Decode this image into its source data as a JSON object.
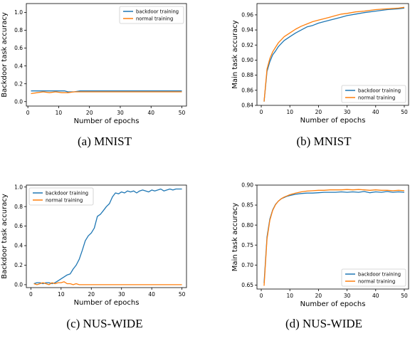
{
  "chart_data": [
    {
      "type": "line",
      "caption": "(a) MNIST",
      "xlabel": "Number of epochs",
      "ylabel": "Backdoor task accuracy",
      "xlim": [
        -0.5,
        51.5
      ],
      "ylim": [
        -0.05,
        1.1
      ],
      "xticks": [
        0,
        10,
        20,
        30,
        40,
        50
      ],
      "yticks": [
        0.0,
        0.2,
        0.4,
        0.6,
        0.8,
        1.0
      ],
      "ytick_labels": [
        "0.0",
        "0.2",
        "0.4",
        "0.6",
        "0.8",
        "1.0"
      ],
      "legend": "top-right",
      "grid": false,
      "series": [
        {
          "name": "backdoor training",
          "color": "#1f77b4",
          "x": [
            1,
            3,
            5,
            7,
            9,
            11,
            12,
            13,
            15,
            17,
            20,
            25,
            30,
            35,
            40,
            45,
            50
          ],
          "values": [
            0.12,
            0.12,
            0.12,
            0.12,
            0.12,
            0.12,
            0.12,
            0.11,
            0.11,
            0.12,
            0.12,
            0.12,
            0.12,
            0.12,
            0.12,
            0.12,
            0.12
          ]
        },
        {
          "name": "normal training",
          "color": "#ff7f0e",
          "x": [
            1,
            3,
            5,
            7,
            9,
            11,
            13,
            15,
            17,
            20,
            25,
            30,
            35,
            40,
            45,
            50
          ],
          "values": [
            0.09,
            0.1,
            0.11,
            0.1,
            0.11,
            0.1,
            0.1,
            0.11,
            0.11,
            0.11,
            0.11,
            0.11,
            0.11,
            0.11,
            0.11,
            0.11
          ]
        }
      ]
    },
    {
      "type": "line",
      "caption": "(b) MNIST",
      "xlabel": "Number of epochs",
      "ylabel": "Main task accuracy",
      "xlim": [
        -1.5,
        51.5
      ],
      "ylim": [
        0.84,
        0.975
      ],
      "xticks": [
        0,
        10,
        20,
        30,
        40,
        50
      ],
      "yticks": [
        0.84,
        0.86,
        0.88,
        0.9,
        0.92,
        0.94,
        0.96
      ],
      "ytick_labels": [
        "0.84",
        "0.86",
        "0.88",
        "0.90",
        "0.92",
        "0.94",
        "0.96"
      ],
      "legend": "bottom-right",
      "grid": false,
      "series": [
        {
          "name": "backdoor training",
          "color": "#1f77b4",
          "x": [
            1,
            2,
            3,
            4,
            5,
            6,
            7,
            8,
            10,
            12,
            14,
            16,
            18,
            20,
            22,
            24,
            26,
            28,
            30,
            33,
            36,
            40,
            44,
            48,
            50
          ],
          "values": [
            0.845,
            0.885,
            0.898,
            0.907,
            0.912,
            0.918,
            0.922,
            0.926,
            0.931,
            0.936,
            0.94,
            0.944,
            0.946,
            0.949,
            0.951,
            0.953,
            0.955,
            0.957,
            0.959,
            0.961,
            0.963,
            0.965,
            0.967,
            0.968,
            0.969
          ]
        },
        {
          "name": "normal training",
          "color": "#ff7f0e",
          "x": [
            1,
            2,
            3,
            4,
            5,
            6,
            7,
            8,
            10,
            12,
            14,
            16,
            18,
            20,
            22,
            24,
            26,
            28,
            30,
            33,
            36,
            40,
            44,
            48,
            50
          ],
          "values": [
            0.845,
            0.888,
            0.902,
            0.911,
            0.917,
            0.923,
            0.927,
            0.931,
            0.936,
            0.941,
            0.945,
            0.948,
            0.951,
            0.953,
            0.955,
            0.957,
            0.959,
            0.961,
            0.962,
            0.964,
            0.965,
            0.967,
            0.968,
            0.969,
            0.97
          ]
        }
      ]
    },
    {
      "type": "line",
      "caption": "(c) NUS-WIDE",
      "xlabel": "Number of epochs",
      "ylabel": "Backdoor task accuracy",
      "xlim": [
        -1.5,
        51.5
      ],
      "ylim": [
        -0.03,
        1.02
      ],
      "xticks": [
        0,
        10,
        20,
        30,
        40,
        50
      ],
      "yticks": [
        0.0,
        0.2,
        0.4,
        0.6,
        0.8,
        1.0
      ],
      "ytick_labels": [
        "0.0",
        "0.2",
        "0.4",
        "0.6",
        "0.8",
        "1.0"
      ],
      "legend": "top-left",
      "grid": false,
      "series": [
        {
          "name": "backdoor training",
          "color": "#1f77b4",
          "x": [
            1,
            2,
            3,
            4,
            5,
            6,
            7,
            8,
            9,
            10,
            11,
            12,
            13,
            14,
            15,
            16,
            17,
            18,
            19,
            20,
            21,
            22,
            23,
            24,
            25,
            26,
            27,
            28,
            29,
            30,
            31,
            32,
            33,
            34,
            35,
            36,
            37,
            38,
            39,
            40,
            41,
            42,
            43,
            44,
            45,
            46,
            47,
            48,
            49,
            50
          ],
          "values": [
            0.01,
            0.02,
            0.02,
            0.01,
            0.02,
            0.02,
            0.01,
            0.02,
            0.04,
            0.06,
            0.08,
            0.1,
            0.11,
            0.16,
            0.2,
            0.26,
            0.35,
            0.45,
            0.5,
            0.53,
            0.58,
            0.7,
            0.72,
            0.76,
            0.8,
            0.83,
            0.9,
            0.94,
            0.93,
            0.95,
            0.94,
            0.96,
            0.95,
            0.96,
            0.94,
            0.96,
            0.97,
            0.96,
            0.95,
            0.97,
            0.96,
            0.97,
            0.98,
            0.96,
            0.97,
            0.98,
            0.97,
            0.98,
            0.98,
            0.98
          ]
        },
        {
          "name": "normal training",
          "color": "#ff7f0e",
          "x": [
            1,
            2,
            3,
            4,
            5,
            6,
            7,
            8,
            9,
            10,
            11,
            12,
            13,
            14,
            15,
            16,
            17,
            18,
            20,
            25,
            30,
            35,
            40,
            45,
            50
          ],
          "values": [
            0.01,
            0.0,
            0.01,
            0.02,
            0.01,
            0.0,
            0.02,
            0.01,
            0.02,
            0.02,
            0.03,
            0.01,
            0.01,
            0.0,
            0.01,
            0.0,
            0.0,
            0.0,
            0.0,
            0.0,
            0.0,
            0.0,
            0.0,
            0.0,
            0.0
          ]
        }
      ]
    },
    {
      "type": "line",
      "caption": "(d) NUS-WIDE",
      "xlabel": "Number of epochs",
      "ylabel": "Main task accuracy",
      "xlim": [
        -1.5,
        51.5
      ],
      "ylim": [
        0.64,
        0.9
      ],
      "xticks": [
        0,
        10,
        20,
        30,
        40,
        50
      ],
      "yticks": [
        0.65,
        0.7,
        0.75,
        0.8,
        0.85,
        0.9
      ],
      "ytick_labels": [
        "0.65",
        "0.70",
        "0.75",
        "0.80",
        "0.85",
        "0.90"
      ],
      "legend": "bottom-right",
      "grid": false,
      "series": [
        {
          "name": "backdoor training",
          "color": "#1f77b4",
          "x": [
            1,
            2,
            3,
            4,
            5,
            6,
            7,
            8,
            9,
            10,
            12,
            14,
            16,
            18,
            20,
            22,
            24,
            26,
            28,
            30,
            32,
            34,
            36,
            38,
            40,
            42,
            44,
            46,
            48,
            50
          ],
          "values": [
            0.655,
            0.77,
            0.815,
            0.838,
            0.852,
            0.86,
            0.866,
            0.869,
            0.872,
            0.874,
            0.877,
            0.879,
            0.88,
            0.88,
            0.881,
            0.882,
            0.882,
            0.882,
            0.883,
            0.882,
            0.883,
            0.882,
            0.884,
            0.881,
            0.883,
            0.882,
            0.884,
            0.882,
            0.883,
            0.882
          ]
        },
        {
          "name": "normal training",
          "color": "#ff7f0e",
          "x": [
            1,
            2,
            3,
            4,
            5,
            6,
            7,
            8,
            9,
            10,
            12,
            14,
            16,
            18,
            20,
            22,
            24,
            26,
            28,
            30,
            32,
            34,
            36,
            38,
            40,
            42,
            44,
            46,
            48,
            50
          ],
          "values": [
            0.648,
            0.765,
            0.812,
            0.837,
            0.851,
            0.86,
            0.866,
            0.87,
            0.873,
            0.876,
            0.88,
            0.883,
            0.885,
            0.886,
            0.887,
            0.887,
            0.888,
            0.888,
            0.888,
            0.889,
            0.888,
            0.889,
            0.888,
            0.887,
            0.888,
            0.887,
            0.887,
            0.886,
            0.887,
            0.886
          ]
        }
      ]
    }
  ]
}
